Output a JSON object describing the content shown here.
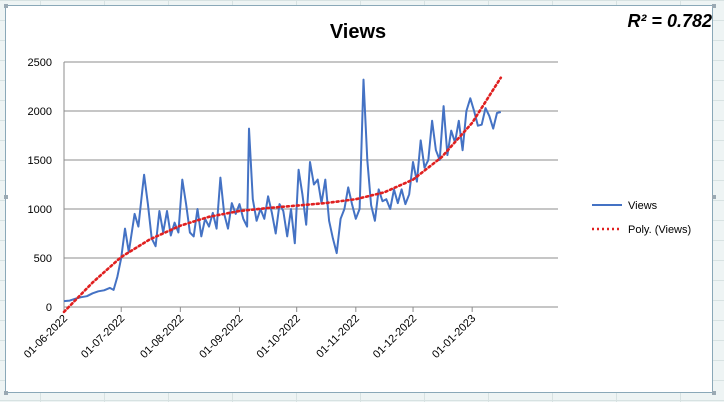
{
  "chart_data": {
    "type": "line",
    "title": "Views",
    "xlabel": "",
    "ylabel": "",
    "ylim": [
      0,
      2500
    ],
    "yticks": [
      0,
      500,
      1000,
      1500,
      2000,
      2500
    ],
    "xlim": [
      "2022-06-01",
      "2023-02-15"
    ],
    "xtick_labels": [
      "01-06-2022",
      "01-07-2022",
      "01-08-2022",
      "01-09-2022",
      "01-10-2022",
      "01-11-2022",
      "01-12-2022",
      "01-01-2023"
    ],
    "grid": "horizontal",
    "legend_position": "right",
    "series": [
      {
        "name": "Views",
        "color": "#4472c4",
        "style": "solid",
        "points": [
          [
            "2022-06-01",
            60
          ],
          [
            "2022-06-04",
            65
          ],
          [
            "2022-06-07",
            85
          ],
          [
            "2022-06-10",
            100
          ],
          [
            "2022-06-13",
            110
          ],
          [
            "2022-06-16",
            140
          ],
          [
            "2022-06-19",
            160
          ],
          [
            "2022-06-22",
            170
          ],
          [
            "2022-06-25",
            195
          ],
          [
            "2022-06-27",
            175
          ],
          [
            "2022-06-29",
            310
          ],
          [
            "2022-07-01",
            500
          ],
          [
            "2022-07-03",
            800
          ],
          [
            "2022-07-05",
            560
          ],
          [
            "2022-07-08",
            950
          ],
          [
            "2022-07-10",
            820
          ],
          [
            "2022-07-12",
            1180
          ],
          [
            "2022-07-13",
            1350
          ],
          [
            "2022-07-15",
            1050
          ],
          [
            "2022-07-17",
            700
          ],
          [
            "2022-07-19",
            620
          ],
          [
            "2022-07-21",
            980
          ],
          [
            "2022-07-23",
            760
          ],
          [
            "2022-07-25",
            980
          ],
          [
            "2022-07-27",
            730
          ],
          [
            "2022-07-29",
            860
          ],
          [
            "2022-07-31",
            760
          ],
          [
            "2022-08-02",
            1300
          ],
          [
            "2022-08-04",
            1050
          ],
          [
            "2022-08-06",
            760
          ],
          [
            "2022-08-08",
            720
          ],
          [
            "2022-08-10",
            1000
          ],
          [
            "2022-08-12",
            720
          ],
          [
            "2022-08-14",
            900
          ],
          [
            "2022-08-16",
            820
          ],
          [
            "2022-08-18",
            960
          ],
          [
            "2022-08-20",
            800
          ],
          [
            "2022-08-22",
            1320
          ],
          [
            "2022-08-24",
            950
          ],
          [
            "2022-08-26",
            800
          ],
          [
            "2022-08-28",
            1060
          ],
          [
            "2022-08-30",
            950
          ],
          [
            "2022-09-01",
            1050
          ],
          [
            "2022-09-03",
            900
          ],
          [
            "2022-09-05",
            820
          ],
          [
            "2022-09-06",
            1820
          ],
          [
            "2022-09-08",
            1100
          ],
          [
            "2022-09-10",
            880
          ],
          [
            "2022-09-12",
            1000
          ],
          [
            "2022-09-14",
            900
          ],
          [
            "2022-09-16",
            1130
          ],
          [
            "2022-09-18",
            960
          ],
          [
            "2022-09-20",
            750
          ],
          [
            "2022-09-22",
            1050
          ],
          [
            "2022-09-24",
            980
          ],
          [
            "2022-09-26",
            720
          ],
          [
            "2022-09-28",
            1000
          ],
          [
            "2022-09-30",
            650
          ],
          [
            "2022-10-02",
            1400
          ],
          [
            "2022-10-04",
            1150
          ],
          [
            "2022-10-06",
            840
          ],
          [
            "2022-10-08",
            1480
          ],
          [
            "2022-10-10",
            1250
          ],
          [
            "2022-10-12",
            1300
          ],
          [
            "2022-10-14",
            1060
          ],
          [
            "2022-10-16",
            1300
          ],
          [
            "2022-10-18",
            880
          ],
          [
            "2022-10-20",
            700
          ],
          [
            "2022-10-22",
            550
          ],
          [
            "2022-10-24",
            900
          ],
          [
            "2022-10-26",
            1000
          ],
          [
            "2022-10-28",
            1220
          ],
          [
            "2022-10-30",
            1050
          ],
          [
            "2022-11-01",
            900
          ],
          [
            "2022-11-03",
            1000
          ],
          [
            "2022-11-05",
            2320
          ],
          [
            "2022-11-07",
            1500
          ],
          [
            "2022-11-09",
            1040
          ],
          [
            "2022-11-11",
            880
          ],
          [
            "2022-11-13",
            1200
          ],
          [
            "2022-11-15",
            1080
          ],
          [
            "2022-11-17",
            1100
          ],
          [
            "2022-11-19",
            1000
          ],
          [
            "2022-11-21",
            1200
          ],
          [
            "2022-11-23",
            1060
          ],
          [
            "2022-11-25",
            1200
          ],
          [
            "2022-11-27",
            1050
          ],
          [
            "2022-11-29",
            1150
          ],
          [
            "2022-12-01",
            1480
          ],
          [
            "2022-12-03",
            1280
          ],
          [
            "2022-12-05",
            1700
          ],
          [
            "2022-12-07",
            1420
          ],
          [
            "2022-12-09",
            1500
          ],
          [
            "2022-12-11",
            1900
          ],
          [
            "2022-12-13",
            1600
          ],
          [
            "2022-12-15",
            1500
          ],
          [
            "2022-12-17",
            2050
          ],
          [
            "2022-12-19",
            1550
          ],
          [
            "2022-12-21",
            1800
          ],
          [
            "2022-12-23",
            1680
          ],
          [
            "2022-12-25",
            1900
          ],
          [
            "2022-12-27",
            1600
          ],
          [
            "2022-12-29",
            2000
          ],
          [
            "2022-12-31",
            2130
          ],
          [
            "2023-01-02",
            2000
          ],
          [
            "2023-01-04",
            1850
          ],
          [
            "2023-01-06",
            1860
          ],
          [
            "2023-01-08",
            2030
          ],
          [
            "2023-01-10",
            1950
          ],
          [
            "2023-01-12",
            1820
          ],
          [
            "2023-01-14",
            1980
          ],
          [
            "2023-01-16",
            1990
          ]
        ]
      },
      {
        "name": "Poly. (Views)",
        "color": "#e02020",
        "style": "dotted",
        "points": [
          [
            "2022-06-01",
            -50
          ],
          [
            "2022-06-16",
            250
          ],
          [
            "2022-07-01",
            510
          ],
          [
            "2022-07-16",
            690
          ],
          [
            "2022-08-01",
            830
          ],
          [
            "2022-08-16",
            920
          ],
          [
            "2022-09-01",
            980
          ],
          [
            "2022-09-16",
            1010
          ],
          [
            "2022-10-01",
            1035
          ],
          [
            "2022-10-16",
            1060
          ],
          [
            "2022-11-01",
            1100
          ],
          [
            "2022-11-16",
            1170
          ],
          [
            "2022-12-01",
            1300
          ],
          [
            "2022-12-16",
            1530
          ],
          [
            "2023-01-01",
            1880
          ],
          [
            "2023-01-16",
            2340
          ]
        ]
      }
    ],
    "annotation": "R² = 0.782"
  }
}
